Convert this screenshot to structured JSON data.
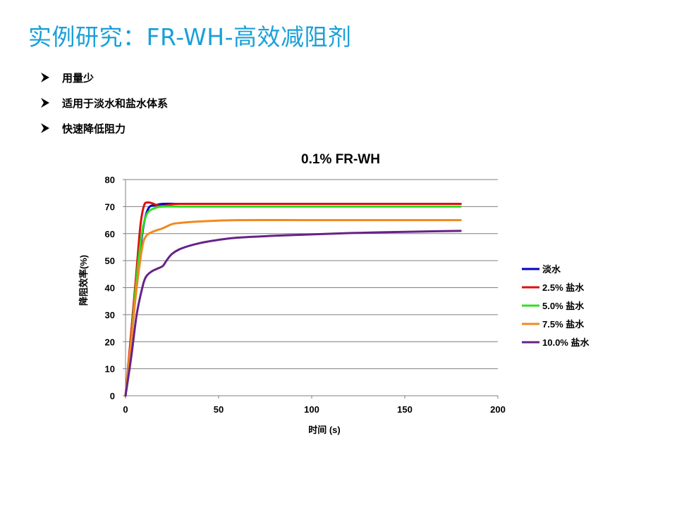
{
  "slide": {
    "title": "实例研究：FR-WH-高效减阻剂",
    "bullets": [
      {
        "text": "用量少"
      },
      {
        "text": "适用于淡水和盐水体系"
      },
      {
        "text": "快速降低阻力"
      }
    ]
  },
  "colors": {
    "title": "#1aa0d8",
    "grid": "#7f7f7f"
  },
  "chart_data": {
    "type": "line",
    "title": "0.1%  FR-WH",
    "xlabel": "时间 (s)",
    "ylabel": "降阻效率(%)",
    "xlim": [
      0,
      200
    ],
    "ylim": [
      0,
      80
    ],
    "xticks": [
      0,
      50,
      100,
      150,
      200
    ],
    "yticks": [
      0,
      10,
      20,
      30,
      40,
      50,
      60,
      70,
      80
    ],
    "grid": "horizontal",
    "legend_position": "right",
    "series": [
      {
        "name": "淡水",
        "color": "#0000cc",
        "points": [
          [
            0,
            0
          ],
          [
            3,
            20
          ],
          [
            6,
            42
          ],
          [
            9,
            60
          ],
          [
            11,
            67
          ],
          [
            13,
            70
          ],
          [
            16,
            70.5
          ],
          [
            20,
            71
          ],
          [
            30,
            71
          ],
          [
            60,
            71
          ],
          [
            100,
            71
          ],
          [
            140,
            71
          ],
          [
            180,
            71
          ]
        ]
      },
      {
        "name": "2.5% 盐水",
        "color": "#dd1111",
        "points": [
          [
            0,
            0
          ],
          [
            3,
            23
          ],
          [
            6,
            47
          ],
          [
            8,
            63
          ],
          [
            10,
            70.5
          ],
          [
            12,
            71.5
          ],
          [
            14,
            71.3
          ],
          [
            17,
            70.5
          ],
          [
            20,
            70.2
          ],
          [
            25,
            70.8
          ],
          [
            30,
            71
          ],
          [
            60,
            71
          ],
          [
            100,
            71
          ],
          [
            140,
            71
          ],
          [
            180,
            71
          ]
        ]
      },
      {
        "name": "5.0% 盐水",
        "color": "#33dd22",
        "points": [
          [
            0,
            0
          ],
          [
            3,
            20
          ],
          [
            6,
            44
          ],
          [
            9,
            61
          ],
          [
            11,
            66.5
          ],
          [
            13,
            68.5
          ],
          [
            16,
            69.5
          ],
          [
            20,
            70
          ],
          [
            30,
            70
          ],
          [
            60,
            70
          ],
          [
            100,
            70
          ],
          [
            140,
            70
          ],
          [
            180,
            70
          ]
        ]
      },
      {
        "name": "7.5% 盐水",
        "color": "#f08a20",
        "points": [
          [
            0,
            0
          ],
          [
            3,
            20
          ],
          [
            6,
            40
          ],
          [
            9,
            55
          ],
          [
            11,
            59
          ],
          [
            14,
            60.5
          ],
          [
            20,
            62
          ],
          [
            25,
            63.5
          ],
          [
            30,
            64
          ],
          [
            40,
            64.5
          ],
          [
            60,
            65
          ],
          [
            100,
            65
          ],
          [
            140,
            65
          ],
          [
            180,
            65
          ]
        ]
      },
      {
        "name": "10.0% 盐水",
        "color": "#662288",
        "points": [
          [
            0,
            0
          ],
          [
            3,
            14
          ],
          [
            6,
            30
          ],
          [
            9,
            40
          ],
          [
            11,
            44
          ],
          [
            14,
            46
          ],
          [
            17,
            47
          ],
          [
            20,
            48
          ],
          [
            22,
            50
          ],
          [
            25,
            52.5
          ],
          [
            30,
            54.5
          ],
          [
            40,
            56.5
          ],
          [
            50,
            57.7
          ],
          [
            60,
            58.5
          ],
          [
            80,
            59.2
          ],
          [
            100,
            59.7
          ],
          [
            120,
            60.2
          ],
          [
            140,
            60.5
          ],
          [
            160,
            60.8
          ],
          [
            180,
            61
          ]
        ]
      }
    ]
  }
}
